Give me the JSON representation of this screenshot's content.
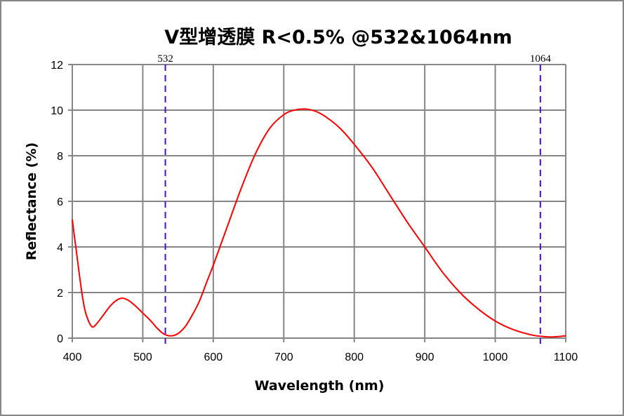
{
  "chart_data": {
    "type": "line",
    "title": "V型增透膜 R<0.5% @532&1064nm",
    "xlabel": "Wavelength (nm)",
    "ylabel": "Reflectance (%)",
    "xlim": [
      400,
      1100
    ],
    "ylim": [
      0,
      12
    ],
    "x_ticks": [
      "400",
      "500",
      "600",
      "700",
      "800",
      "900",
      "1000",
      "1100"
    ],
    "y_ticks": [
      "0",
      "2",
      "4",
      "6",
      "8",
      "10",
      "12"
    ],
    "grid": true,
    "colors": {
      "curve": "#ff0000",
      "marker": "#4b0ae0",
      "grid": "#868686"
    },
    "markers": [
      {
        "x": 532,
        "label": "532"
      },
      {
        "x": 1064,
        "label": "1064"
      }
    ],
    "series": [
      {
        "name": "Reflectance",
        "x": [
          400,
          405,
          410,
          415,
          420,
          428,
          435,
          445,
          455,
          465,
          472,
          480,
          490,
          500,
          510,
          520,
          530,
          540,
          550,
          560,
          570,
          580,
          590,
          600,
          620,
          640,
          660,
          680,
          700,
          715,
          730,
          745,
          760,
          780,
          800,
          825,
          850,
          875,
          900,
          925,
          950,
          975,
          1000,
          1025,
          1050,
          1065,
          1080,
          1100
        ],
        "y": [
          5.2,
          4.0,
          2.8,
          1.7,
          1.0,
          0.5,
          0.65,
          1.05,
          1.45,
          1.7,
          1.75,
          1.65,
          1.4,
          1.1,
          0.8,
          0.45,
          0.18,
          0.1,
          0.2,
          0.5,
          1.0,
          1.6,
          2.4,
          3.2,
          4.9,
          6.6,
          8.1,
          9.2,
          9.8,
          10.0,
          10.05,
          9.95,
          9.7,
          9.2,
          8.5,
          7.5,
          6.3,
          5.1,
          4.0,
          2.9,
          2.0,
          1.3,
          0.75,
          0.38,
          0.15,
          0.08,
          0.05,
          0.1
        ]
      }
    ]
  }
}
